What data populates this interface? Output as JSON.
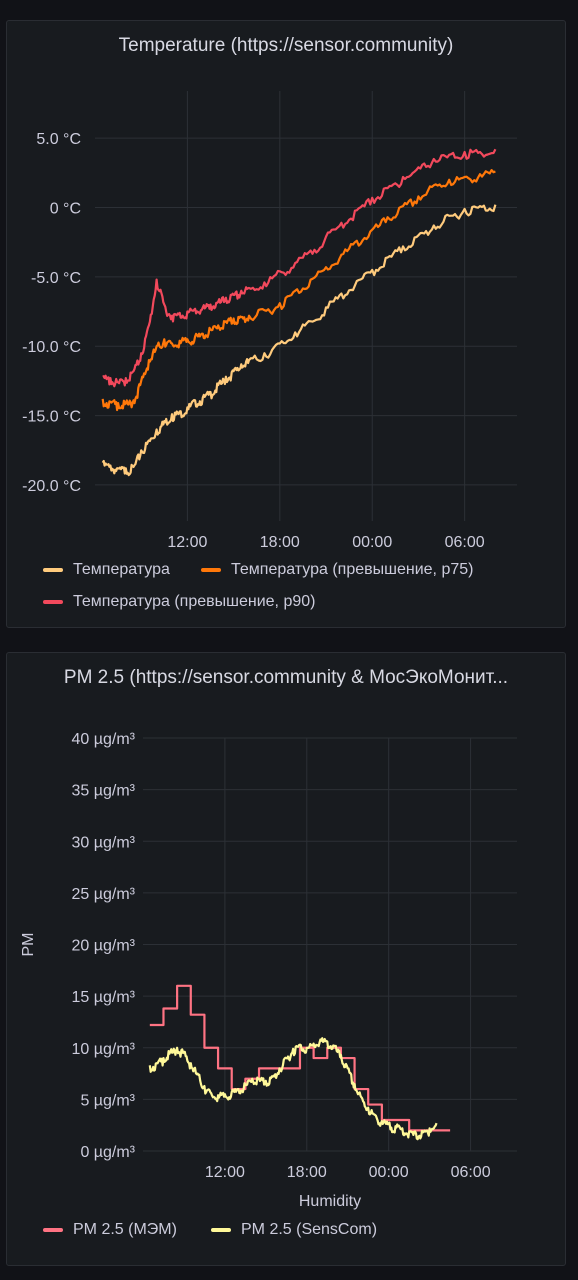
{
  "panels": [
    {
      "title": "Temperature (https://sensor.community)",
      "chart_data": {
        "type": "line",
        "x_unit": "hours since 06:00",
        "x_ticks": [
          6,
          12,
          18,
          24
        ],
        "x_tick_labels": [
          "12:00",
          "18:00",
          "00:00",
          "06:00"
        ],
        "xlim": [
          0,
          27.4
        ],
        "ylim": [
          -22.6,
          8.4
        ],
        "y_ticks": [
          5,
          0,
          -5,
          -10,
          -15,
          -20
        ],
        "y_tick_labels": [
          "5.0 °C",
          "0 °C",
          "-5.0 °C",
          "-10.0 °C",
          "-15.0 °C",
          "-20.0 °C"
        ],
        "xlabel": "",
        "ylabel": "",
        "grid": true,
        "legend_position": "bottom",
        "series": [
          {
            "name": "Температура",
            "color": "#ffcb7d",
            "points": [
              [
                0.5,
                -18.4
              ],
              [
                1.0,
                -18.6
              ],
              [
                1.5,
                -18.8
              ],
              [
                2.0,
                -18.8
              ],
              [
                2.5,
                -18.7
              ],
              [
                3.0,
                -17.5
              ],
              [
                3.5,
                -16.8
              ],
              [
                4.0,
                -16.0
              ],
              [
                4.5,
                -15.4
              ],
              [
                5.0,
                -14.9
              ],
              [
                5.5,
                -14.7
              ],
              [
                6.0,
                -14.4
              ],
              [
                6.5,
                -13.9
              ],
              [
                7.0,
                -13.7
              ],
              [
                7.5,
                -13.3
              ],
              [
                8.0,
                -12.8
              ],
              [
                8.5,
                -12.2
              ],
              [
                9.0,
                -11.8
              ],
              [
                9.5,
                -11.3
              ],
              [
                10.0,
                -11.0
              ],
              [
                11.0,
                -10.5
              ],
              [
                12.0,
                -9.8
              ],
              [
                13.0,
                -9.0
              ],
              [
                14.0,
                -8.2
              ],
              [
                15.0,
                -7.2
              ],
              [
                16.0,
                -6.2
              ],
              [
                17.0,
                -5.3
              ],
              [
                18.0,
                -4.5
              ],
              [
                19.0,
                -3.6
              ],
              [
                20.0,
                -2.8
              ],
              [
                21.0,
                -2.0
              ],
              [
                22.0,
                -1.3
              ],
              [
                23.0,
                -0.6
              ],
              [
                24.0,
                -0.1
              ],
              [
                25.0,
                0.1
              ],
              [
                26.0,
                0.2
              ]
            ]
          },
          {
            "name": "Температура (превышение, p75)",
            "color": "#ff780a",
            "points": [
              [
                0.5,
                -13.8
              ],
              [
                1.0,
                -14.0
              ],
              [
                1.5,
                -14.1
              ],
              [
                2.0,
                -14.1
              ],
              [
                2.5,
                -13.9
              ],
              [
                3.0,
                -12.5
              ],
              [
                3.5,
                -11.0
              ],
              [
                4.0,
                -10.0
              ],
              [
                4.5,
                -9.5
              ],
              [
                5.0,
                -9.8
              ],
              [
                5.5,
                -9.6
              ],
              [
                6.0,
                -9.5
              ],
              [
                6.5,
                -9.3
              ],
              [
                7.0,
                -9.1
              ],
              [
                7.5,
                -8.8
              ],
              [
                8.0,
                -8.5
              ],
              [
                8.5,
                -8.2
              ],
              [
                9.0,
                -8.0
              ],
              [
                9.5,
                -7.9
              ],
              [
                10.0,
                -7.8
              ],
              [
                11.0,
                -7.4
              ],
              [
                12.0,
                -6.9
              ],
              [
                13.0,
                -6.0
              ],
              [
                14.0,
                -5.2
              ],
              [
                15.0,
                -4.3
              ],
              [
                16.0,
                -3.4
              ],
              [
                17.0,
                -2.4
              ],
              [
                18.0,
                -1.6
              ],
              [
                19.0,
                -0.7
              ],
              [
                20.0,
                0.1
              ],
              [
                21.0,
                0.8
              ],
              [
                22.0,
                1.6
              ],
              [
                23.0,
                2.0
              ],
              [
                24.0,
                2.2
              ],
              [
                25.0,
                2.4
              ],
              [
                26.0,
                2.6
              ]
            ]
          },
          {
            "name": "Температура (превышение, p90)",
            "color": "#f2495c",
            "points": [
              [
                0.5,
                -12.2
              ],
              [
                1.0,
                -12.3
              ],
              [
                1.5,
                -12.6
              ],
              [
                2.0,
                -12.3
              ],
              [
                2.5,
                -11.8
              ],
              [
                3.0,
                -10.5
              ],
              [
                3.5,
                -8.5
              ],
              [
                4.0,
                -5.2
              ],
              [
                4.5,
                -7.0
              ],
              [
                5.0,
                -7.8
              ],
              [
                5.5,
                -7.6
              ],
              [
                6.0,
                -7.5
              ],
              [
                6.5,
                -7.3
              ],
              [
                7.0,
                -7.2
              ],
              [
                7.5,
                -7.0
              ],
              [
                8.0,
                -6.8
              ],
              [
                8.5,
                -6.5
              ],
              [
                9.0,
                -6.3
              ],
              [
                9.5,
                -6.0
              ],
              [
                10.0,
                -5.8
              ],
              [
                11.0,
                -5.4
              ],
              [
                12.0,
                -4.6
              ],
              [
                13.0,
                -4.0
              ],
              [
                14.0,
                -3.1
              ],
              [
                15.0,
                -2.1
              ],
              [
                16.0,
                -1.1
              ],
              [
                17.0,
                -0.2
              ],
              [
                18.0,
                0.7
              ],
              [
                19.0,
                1.4
              ],
              [
                20.0,
                2.2
              ],
              [
                21.0,
                2.9
              ],
              [
                22.0,
                3.5
              ],
              [
                23.0,
                3.8
              ],
              [
                24.0,
                4.0
              ],
              [
                25.0,
                4.0
              ],
              [
                26.0,
                4.2
              ]
            ]
          }
        ]
      }
    },
    {
      "title": "PM 2.5 (https://sensor.community & МосЭкоМонит...",
      "chart_data": {
        "type": "line",
        "x_unit": "hours since 06:00",
        "x_ticks": [
          6,
          12,
          18,
          24
        ],
        "x_tick_labels": [
          "12:00",
          "18:00",
          "00:00",
          "06:00"
        ],
        "xlim": [
          0,
          27.4
        ],
        "ylim": [
          0,
          40
        ],
        "y_ticks": [
          40,
          35,
          30,
          25,
          20,
          15,
          10,
          5,
          0
        ],
        "y_tick_labels": [
          "40 µg/m³",
          "35 µg/m³",
          "30 µg/m³",
          "25 µg/m³",
          "20 µg/m³",
          "15 µg/m³",
          "10 µg/m³",
          "5 µg/m³",
          "0 µg/m³"
        ],
        "xlabel": "Humidity",
        "ylabel": "PM",
        "grid": true,
        "legend_position": "bottom",
        "series": [
          {
            "name": "PM 2.5 (МЭМ)",
            "color": "#ff7383",
            "step": true,
            "points": [
              [
                0.5,
                12.2
              ],
              [
                1.5,
                13.8
              ],
              [
                2.5,
                16.0
              ],
              [
                3.5,
                13.2
              ],
              [
                4.5,
                10.0
              ],
              [
                5.5,
                8.0
              ],
              [
                6.5,
                6.0
              ],
              [
                7.5,
                7.0
              ],
              [
                8.5,
                8.0
              ],
              [
                11.5,
                10.0
              ],
              [
                12.5,
                9.0
              ],
              [
                13.5,
                10.0
              ],
              [
                14.5,
                9.0
              ],
              [
                15.5,
                6.0
              ],
              [
                16.5,
                4.5
              ],
              [
                17.5,
                3.0
              ],
              [
                19.5,
                2.0
              ],
              [
                21.5,
                2.0
              ]
            ]
          },
          {
            "name": "PM 2.5 (SensCom)",
            "color": "#fff899",
            "points": [
              [
                0.5,
                8.3
              ],
              [
                1.0,
                8.5
              ],
              [
                1.5,
                9.0
              ],
              [
                2.0,
                9.6
              ],
              [
                2.5,
                10.0
              ],
              [
                3.0,
                9.6
              ],
              [
                3.5,
                8.5
              ],
              [
                4.0,
                7.5
              ],
              [
                4.5,
                6.3
              ],
              [
                5.0,
                5.6
              ],
              [
                5.5,
                5.4
              ],
              [
                6.0,
                5.5
              ],
              [
                6.5,
                5.7
              ],
              [
                7.0,
                6.0
              ],
              [
                7.5,
                6.4
              ],
              [
                8.0,
                7.0
              ],
              [
                8.5,
                7.0
              ],
              [
                9.0,
                6.8
              ],
              [
                9.5,
                7.2
              ],
              [
                10.0,
                8.0
              ],
              [
                10.5,
                9.0
              ],
              [
                11.0,
                9.9
              ],
              [
                11.5,
                10.3
              ],
              [
                12.0,
                10.0
              ],
              [
                12.5,
                10.4
              ],
              [
                13.0,
                10.8
              ],
              [
                13.5,
                10.6
              ],
              [
                14.0,
                10.2
              ],
              [
                14.5,
                9.3
              ],
              [
                15.0,
                8.0
              ],
              [
                15.5,
                6.5
              ],
              [
                16.0,
                5.2
              ],
              [
                16.5,
                4.2
              ],
              [
                17.0,
                3.5
              ],
              [
                17.5,
                2.9
              ],
              [
                18.0,
                2.6
              ],
              [
                18.5,
                2.4
              ],
              [
                19.0,
                2.2
              ],
              [
                19.5,
                1.9
              ],
              [
                20.0,
                1.7
              ],
              [
                20.5,
                1.8
              ],
              [
                21.0,
                2.2
              ],
              [
                21.5,
                2.7
              ]
            ]
          }
        ]
      }
    }
  ]
}
